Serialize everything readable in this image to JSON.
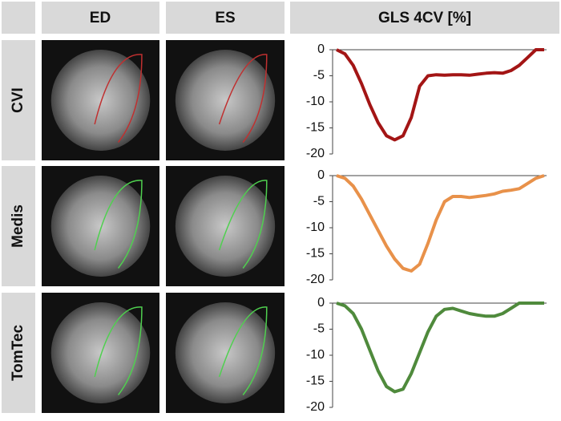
{
  "header": {
    "columns": [
      "ED",
      "ES",
      "GLS 4CV [%]"
    ],
    "rows": [
      "CVI",
      "Medis",
      "TomTec"
    ]
  },
  "chart_data": [
    {
      "type": "line",
      "color": "#a31515",
      "ylim": [
        -20,
        0
      ],
      "yticks": [
        0,
        -5,
        -10,
        -15,
        -20
      ],
      "values": [
        0,
        -0.8,
        -3,
        -6.5,
        -10.5,
        -14,
        -16.5,
        -17.3,
        -16.5,
        -13,
        -7,
        -5,
        -4.8,
        -4.9,
        -4.8,
        -4.8,
        -4.9,
        -4.7,
        -4.5,
        -4.4,
        -4.5,
        -4,
        -3,
        -1.5,
        0,
        0
      ]
    },
    {
      "type": "line",
      "color": "#e8914a",
      "ylim": [
        -20,
        0
      ],
      "yticks": [
        0,
        -5,
        -10,
        -15,
        -20
      ],
      "values": [
        0,
        -0.5,
        -2,
        -4.5,
        -7.5,
        -10.5,
        -13.5,
        -16,
        -17.8,
        -18.3,
        -17,
        -13,
        -8.5,
        -5,
        -4,
        -4,
        -4.2,
        -4,
        -3.8,
        -3.5,
        -3,
        -2.8,
        -2.5,
        -1.5,
        -0.5,
        0
      ]
    },
    {
      "type": "line",
      "color": "#4f8a3c",
      "ylim": [
        -20,
        0
      ],
      "yticks": [
        0,
        -5,
        -10,
        -15,
        -20
      ],
      "values": [
        0,
        -0.5,
        -2,
        -5,
        -9,
        -13,
        -16,
        -17,
        -16.5,
        -13.5,
        -9.5,
        -5.5,
        -2.5,
        -1.2,
        -1,
        -1.5,
        -2,
        -2.3,
        -2.5,
        -2.5,
        -2,
        -1,
        0,
        0,
        0,
        0
      ]
    }
  ]
}
